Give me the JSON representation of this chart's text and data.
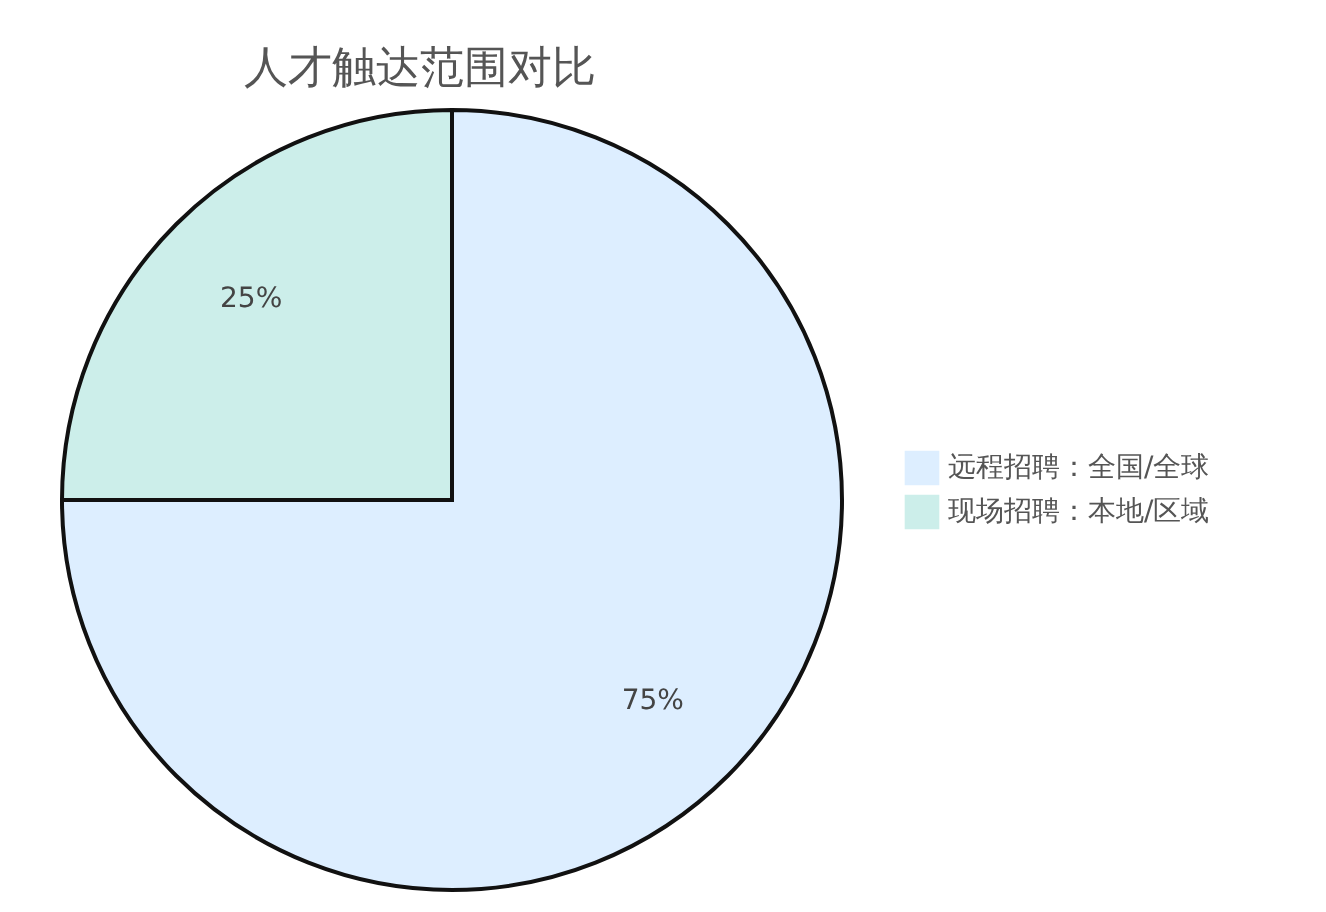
{
  "chart_data": {
    "type": "pie",
    "title": "人才触达范围对比",
    "categories": [
      "远程招聘：全国/全球",
      "现场招聘：本地/区域"
    ],
    "values": [
      75,
      25
    ],
    "colors": [
      "#ddeeff",
      "#cceeea"
    ],
    "value_labels": [
      "75%",
      "25%"
    ],
    "legend": "right"
  }
}
